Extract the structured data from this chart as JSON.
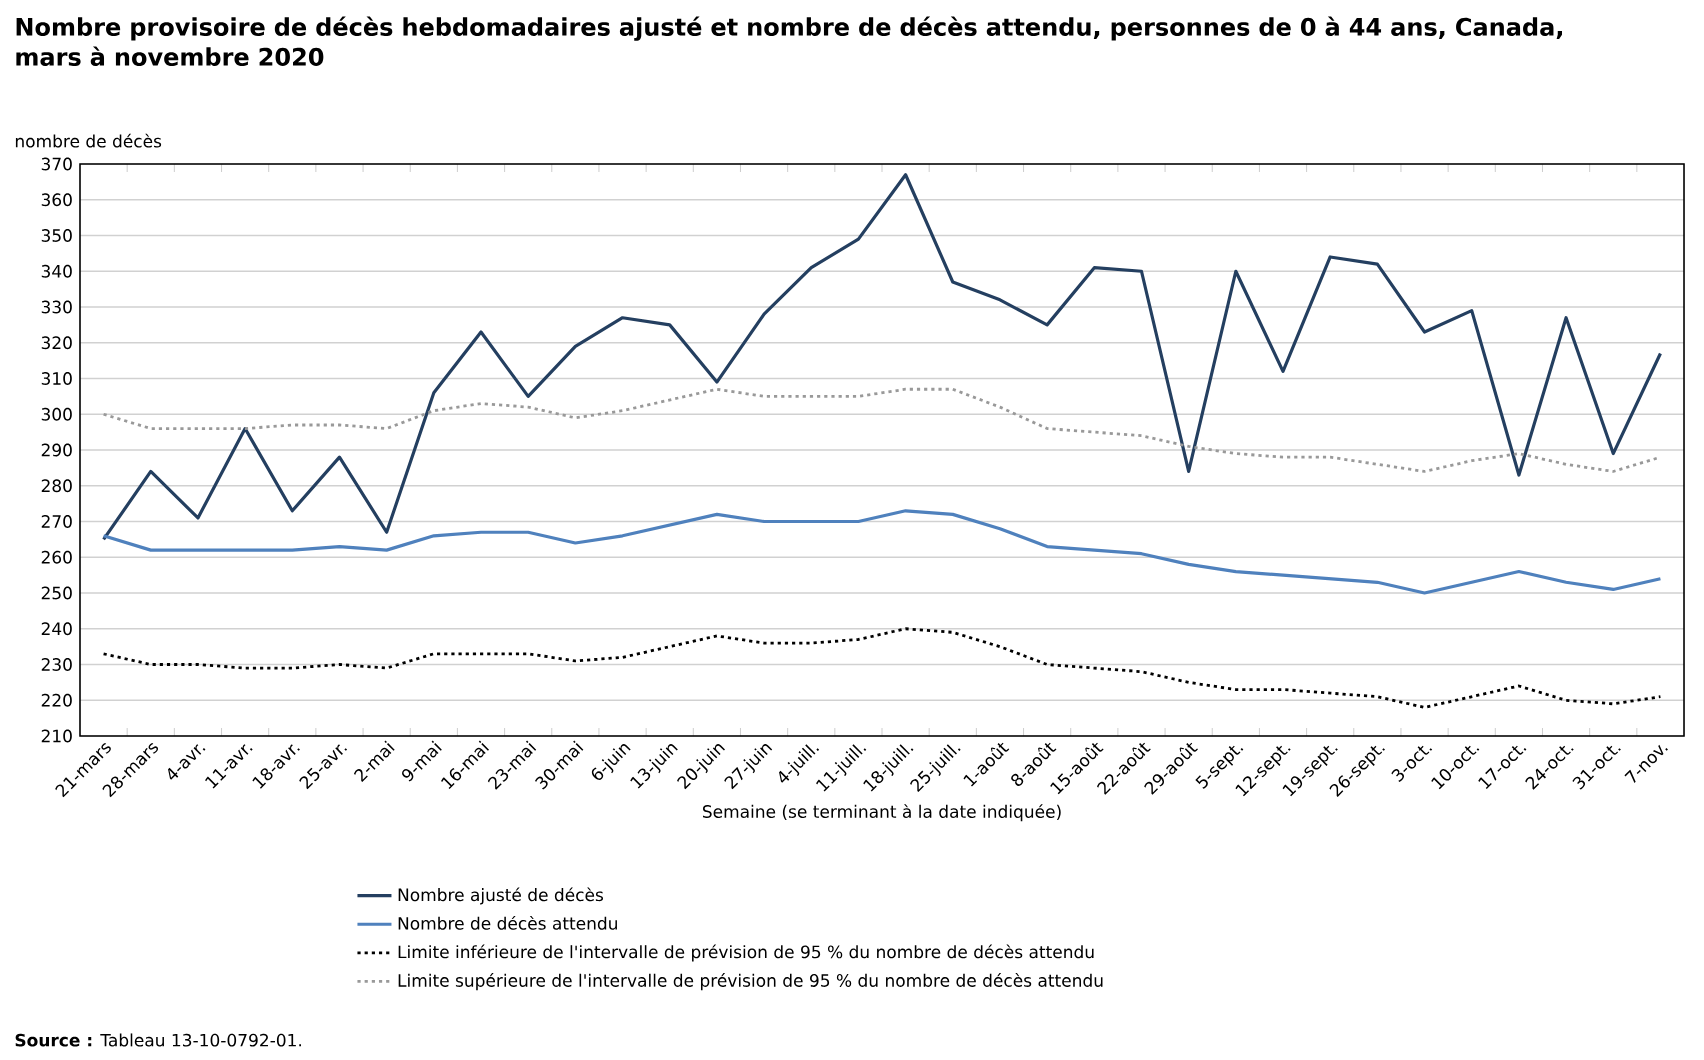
{
  "chart_data": {
    "type": "line",
    "title": "Nombre provisoire de décès hebdomadaires ajusté et nombre de décès attendu, personnes de 0 à 44 ans, Canada, mars à novembre 2020",
    "ylabel": "nombre de décès",
    "xlabel": "Semaine (se terminant à la date indiquée)",
    "categories": [
      "21-mars",
      "28-mars",
      "4-avr.",
      "11-avr.",
      "18-avr.",
      "25-avr.",
      "2-mai",
      "9-mai",
      "16-mai",
      "23-mai",
      "30-mai",
      "6-juin",
      "13-juin",
      "20-juin",
      "27-juin",
      "4-juill.",
      "11-juill.",
      "18-juill.",
      "25-juill.",
      "1-août",
      "8-août",
      "15-août",
      "22-août",
      "29-août",
      "5-sept.",
      "12-sept.",
      "19-sept.",
      "26-sept.",
      "3-oct.",
      "10-oct.",
      "17-oct.",
      "24-oct.",
      "31-oct.",
      "7-nov."
    ],
    "series": [
      {
        "name": "Nombre ajusté de décès",
        "color": "#243f60",
        "line_style": "solid",
        "values": [
          265,
          284,
          271,
          296,
          273,
          288,
          267,
          306,
          323,
          305,
          319,
          327,
          325,
          309,
          328,
          341,
          349,
          367,
          337,
          332,
          325,
          341,
          340,
          284,
          340,
          312,
          344,
          342,
          323,
          329,
          283,
          327,
          289,
          317
        ]
      },
      {
        "name": "Nombre de décès attendu",
        "color": "#4f81bd",
        "line_style": "solid",
        "values": [
          266,
          262,
          262,
          262,
          262,
          263,
          262,
          266,
          267,
          267,
          264,
          266,
          269,
          272,
          270,
          270,
          270,
          273,
          272,
          268,
          263,
          262,
          261,
          258,
          256,
          255,
          254,
          253,
          250,
          253,
          256,
          253,
          251,
          254
        ]
      },
      {
        "name": "Limite inférieure de l'intervalle de prévision de 95 % du nombre de décès attendu",
        "color": "#000000",
        "line_style": "dotted",
        "values": [
          233,
          230,
          230,
          229,
          229,
          230,
          229,
          233,
          233,
          233,
          231,
          232,
          235,
          238,
          236,
          236,
          237,
          240,
          239,
          235,
          230,
          229,
          228,
          225,
          223,
          223,
          222,
          221,
          218,
          221,
          224,
          220,
          219,
          221
        ]
      },
      {
        "name": "Limite supérieure de l'intervalle de prévision de 95 % du nombre de décès attendu",
        "color": "#999999",
        "line_style": "dotted",
        "values": [
          300,
          296,
          296,
          296,
          297,
          297,
          296,
          301,
          303,
          302,
          299,
          301,
          304,
          307,
          305,
          305,
          305,
          307,
          307,
          302,
          296,
          295,
          294,
          291,
          289,
          288,
          288,
          286,
          284,
          287,
          289,
          286,
          284,
          288
        ]
      }
    ],
    "ylim": [
      210,
      370
    ],
    "yticks": [
      210,
      220,
      230,
      240,
      250,
      260,
      270,
      280,
      290,
      300,
      310,
      320,
      330,
      340,
      350,
      360,
      370
    ],
    "grid": "y",
    "legend": "bottom",
    "annotations": [
      "**Source :** Tableau 13-10-0792-01."
    ]
  }
}
